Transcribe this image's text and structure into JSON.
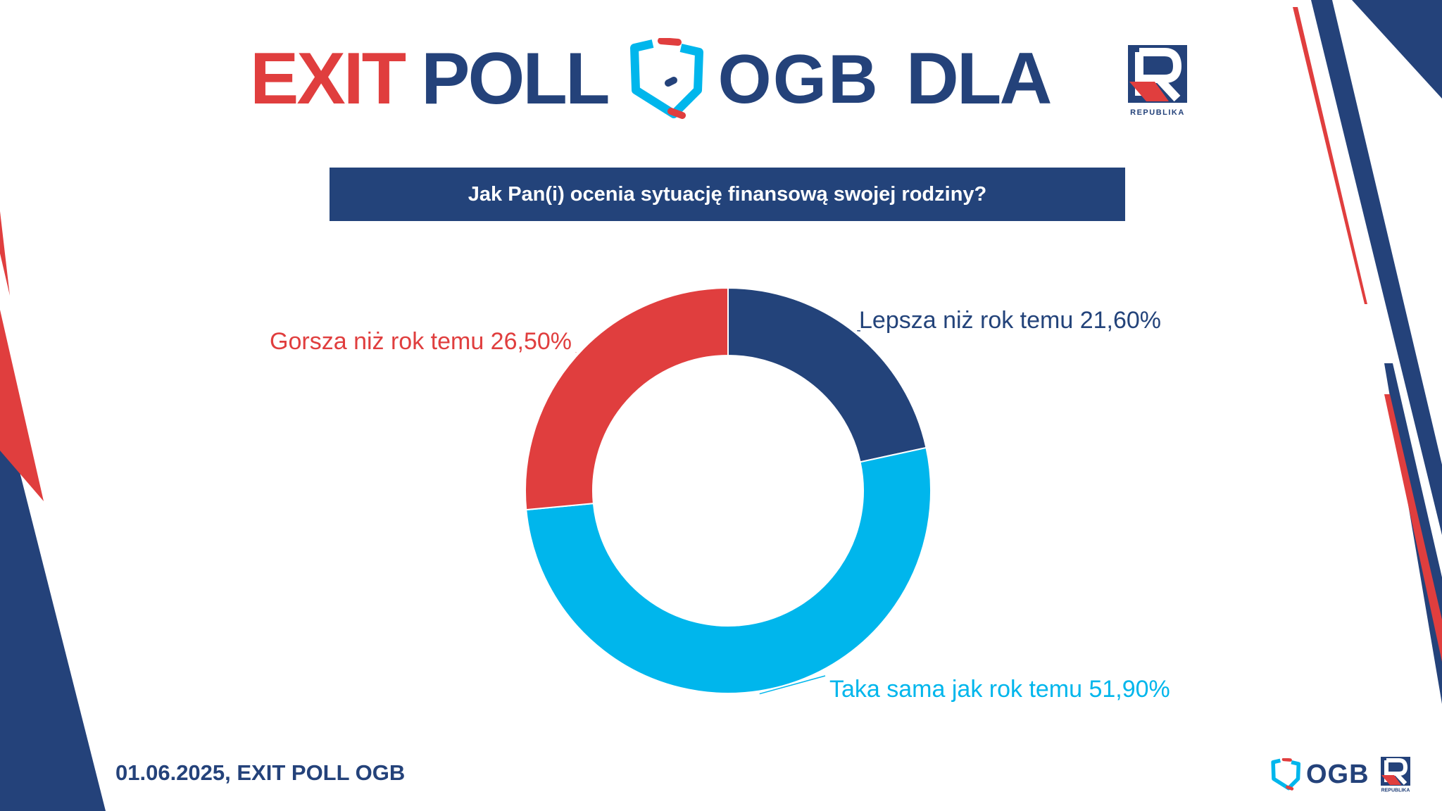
{
  "header": {
    "exit_word": "EXIT",
    "poll_word": "POLL",
    "ogb_word": "OGB",
    "dla_word": "DLA",
    "republika_label": "REPUBLIKA"
  },
  "question": "Jak Pan(i) ocenia sytuację finansową swojej rodziny?",
  "chart_data": {
    "type": "pie",
    "title": "Jak Pan(i) ocenia sytuację finansową swojej rodziny?",
    "style": "donut",
    "categories": [
      "Lepsza niż rok temu",
      "Taka sama jak rok temu",
      "Gorsza niż rok temu"
    ],
    "values": [
      21.6,
      51.9,
      26.5
    ],
    "value_labels": [
      "21,60%",
      "51,90%",
      "26,50%"
    ],
    "colors": [
      "#23437a",
      "#00b6ec",
      "#e03e3e"
    ],
    "labels": [
      "Lepsza niż rok temu 21,60%",
      "Taka sama jak rok temu 51,90%",
      "Gorsza niż rok temu 26,50%"
    ]
  },
  "footer": {
    "date_text": "01.06.2025, EXIT POLL OGB",
    "ogb_small": "OGB",
    "republika_small": "REPUBLIKA"
  },
  "colors": {
    "navy": "#23437a",
    "red": "#e03e3e",
    "cyan": "#00b6ec"
  }
}
